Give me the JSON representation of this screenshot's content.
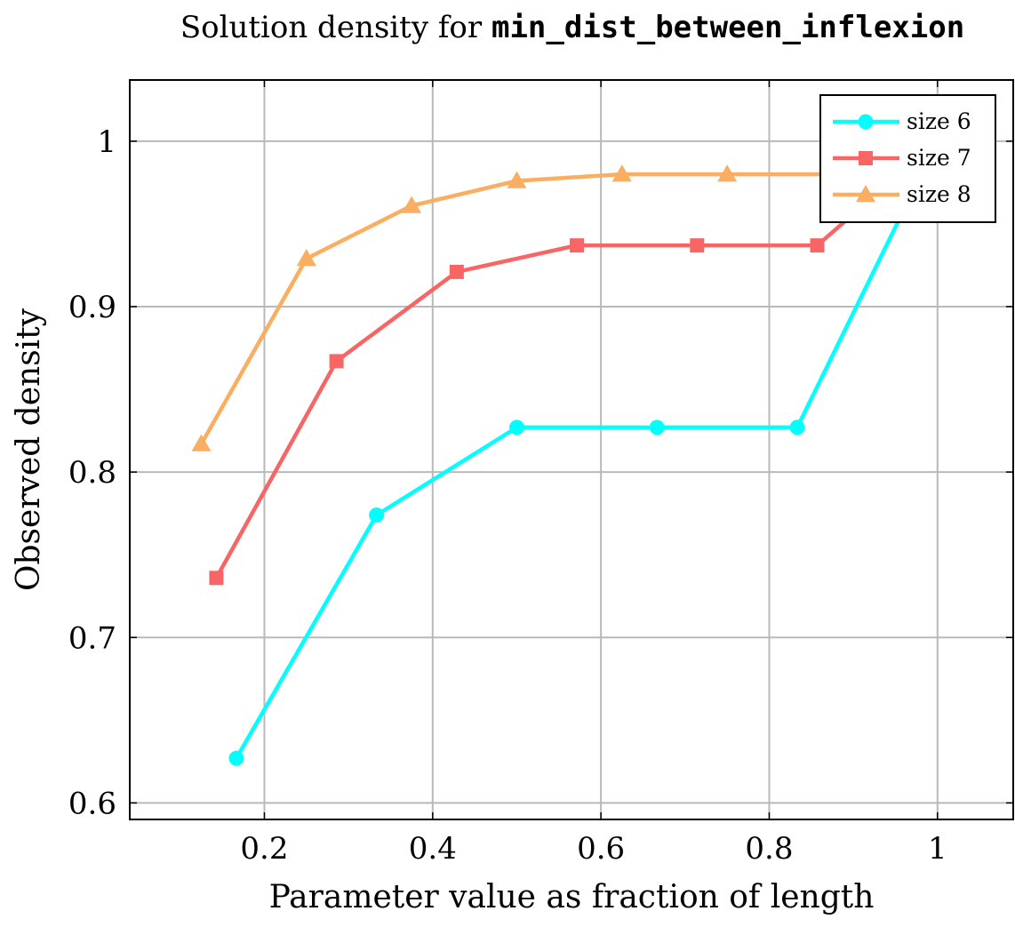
{
  "chart_data": {
    "type": "line",
    "title": {
      "prefix": "Solution density for ",
      "code": "min_dist_between_inflexion"
    },
    "xlabel": "Parameter value as fraction of length",
    "ylabel": "Observed density",
    "xlim": [
      0.04,
      1.09
    ],
    "ylim": [
      0.59,
      1.037
    ],
    "xticks": [
      0.2,
      0.4,
      0.6,
      0.8,
      1.0
    ],
    "xtick_labels": [
      "0.2",
      "0.4",
      "0.6",
      "0.8",
      "1"
    ],
    "yticks": [
      0.6,
      0.7,
      0.8,
      0.9,
      1.0
    ],
    "ytick_labels": [
      "0.6",
      "0.7",
      "0.8",
      "0.9",
      "1"
    ],
    "grid": true,
    "legend_position": "top-right",
    "series": [
      {
        "name": "size 6",
        "color": "#00ffff",
        "marker": "circle",
        "x": [
          0.1667,
          0.3333,
          0.5,
          0.6667,
          0.8333,
          1.0
        ],
        "y": [
          0.627,
          0.774,
          0.827,
          0.827,
          0.827,
          1.0
        ]
      },
      {
        "name": "size 7",
        "color": "#f86565",
        "marker": "square",
        "x": [
          0.1429,
          0.2857,
          0.4286,
          0.5714,
          0.7143,
          0.8571,
          1.0
        ],
        "y": [
          0.736,
          0.867,
          0.921,
          0.937,
          0.937,
          0.937,
          1.0
        ]
      },
      {
        "name": "size 8",
        "color": "#f9ae61",
        "marker": "triangle",
        "x": [
          0.125,
          0.25,
          0.375,
          0.5,
          0.625,
          0.75,
          0.875,
          1.0
        ],
        "y": [
          0.817,
          0.929,
          0.961,
          0.976,
          0.98,
          0.98,
          0.98,
          0.98
        ]
      }
    ]
  }
}
